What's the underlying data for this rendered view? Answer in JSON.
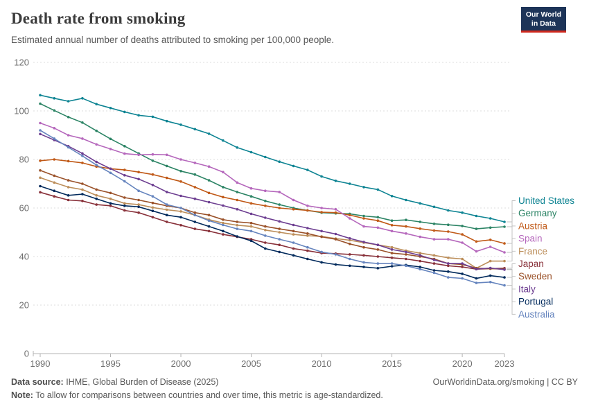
{
  "header": {
    "title": "Death rate from smoking",
    "subtitle": "Estimated annual number of deaths attributed to smoking per 100,000 people.",
    "logo": {
      "line1": "Our World",
      "line2": "in Data",
      "bg_color": "#1d3458",
      "accent_color": "#d0291e"
    }
  },
  "chart_data": {
    "type": "line",
    "title": "Death rate from smoking",
    "xlabel": "",
    "ylabel": "",
    "ylim": [
      0,
      120
    ],
    "y_ticks": [
      0,
      20,
      40,
      60,
      80,
      100,
      120
    ],
    "x_ticks": [
      1990,
      1995,
      2000,
      2005,
      2010,
      2015,
      2020,
      2023
    ],
    "grid": true,
    "legend_position": "right",
    "x": [
      1990,
      1991,
      1992,
      1993,
      1994,
      1995,
      1996,
      1997,
      1998,
      1999,
      2000,
      2001,
      2002,
      2003,
      2004,
      2005,
      2006,
      2007,
      2008,
      2009,
      2010,
      2011,
      2012,
      2013,
      2014,
      2015,
      2016,
      2017,
      2018,
      2019,
      2020,
      2021,
      2022,
      2023
    ],
    "series": [
      {
        "name": "United States",
        "color": "#0e8493",
        "values": [
          106.5,
          105.2,
          104.0,
          105.2,
          102.8,
          101.2,
          99.6,
          98.2,
          97.6,
          95.8,
          94.3,
          92.5,
          90.6,
          87.8,
          84.9,
          83.0,
          81.0,
          79.1,
          77.3,
          75.7,
          73.0,
          71.2,
          70.0,
          68.6,
          67.6,
          64.9,
          63.3,
          61.9,
          60.5,
          59.0,
          58.1,
          56.7,
          55.7,
          54.3
        ]
      },
      {
        "name": "Germany",
        "color": "#2c8465",
        "values": [
          103.0,
          100.2,
          97.5,
          95.2,
          91.8,
          88.5,
          85.5,
          82.5,
          79.5,
          77.3,
          75.2,
          73.8,
          71.4,
          68.6,
          66.6,
          64.8,
          62.9,
          61.4,
          60.0,
          59.0,
          58.1,
          57.8,
          57.6,
          56.7,
          56.2,
          54.8,
          55.1,
          54.3,
          53.5,
          53.1,
          52.6,
          51.4,
          51.9,
          52.3
        ]
      },
      {
        "name": "Austria",
        "color": "#c05917",
        "values": [
          79.5,
          80.0,
          79.3,
          78.6,
          77.1,
          76.2,
          75.7,
          74.8,
          73.8,
          72.4,
          70.9,
          68.6,
          66.2,
          64.5,
          63.3,
          61.9,
          60.9,
          60.0,
          59.5,
          59.0,
          58.3,
          58.1,
          57.1,
          55.7,
          54.8,
          52.9,
          52.4,
          51.5,
          50.7,
          50.3,
          49.1,
          46.2,
          46.9,
          45.4
        ]
      },
      {
        "name": "Spain",
        "color": "#b567bc",
        "values": [
          95.0,
          92.9,
          90.0,
          88.6,
          86.2,
          84.3,
          82.4,
          81.9,
          82.1,
          81.9,
          80.0,
          78.6,
          77.1,
          74.8,
          70.5,
          68.1,
          67.1,
          66.6,
          63.3,
          60.9,
          60.0,
          59.5,
          55.7,
          52.4,
          51.9,
          50.5,
          49.5,
          48.1,
          47.1,
          47.1,
          45.7,
          42.1,
          44.0,
          41.7
        ]
      },
      {
        "name": "France",
        "color": "#bc8e5a",
        "values": [
          72.5,
          70.5,
          68.6,
          67.6,
          65.2,
          63.8,
          61.9,
          61.4,
          60.2,
          59.3,
          58.6,
          57.1,
          55.2,
          53.8,
          52.9,
          52.4,
          50.9,
          50.0,
          49.1,
          48.6,
          48.3,
          47.4,
          46.7,
          45.7,
          44.8,
          43.8,
          42.4,
          41.4,
          40.5,
          39.5,
          39.0,
          35.2,
          38.1,
          38.1
        ]
      },
      {
        "name": "Japan",
        "color": "#883039",
        "values": [
          66.5,
          64.8,
          63.3,
          62.9,
          61.4,
          60.9,
          59.0,
          58.1,
          56.2,
          54.3,
          52.9,
          51.4,
          50.5,
          49.1,
          48.1,
          47.1,
          45.7,
          44.8,
          43.3,
          42.4,
          41.4,
          41.2,
          40.9,
          40.5,
          40.0,
          39.5,
          39.0,
          38.1,
          37.1,
          36.2,
          35.7,
          34.8,
          35.0,
          35.2
        ]
      },
      {
        "name": "Sweden",
        "color": "#9a5129",
        "values": [
          75.5,
          73.3,
          71.4,
          70.0,
          67.6,
          66.2,
          64.3,
          63.3,
          62.1,
          60.9,
          60.0,
          58.1,
          57.1,
          55.2,
          54.3,
          53.8,
          52.4,
          51.4,
          50.5,
          49.5,
          48.1,
          47.1,
          45.2,
          43.8,
          42.9,
          41.4,
          40.9,
          40.0,
          39.0,
          37.1,
          36.7,
          35.2,
          35.0,
          34.8
        ]
      },
      {
        "name": "Italy",
        "color": "#6d3e91",
        "values": [
          90.5,
          88.0,
          85.5,
          82.5,
          79.0,
          76.2,
          73.5,
          71.9,
          69.5,
          66.6,
          65.0,
          63.8,
          62.4,
          61.0,
          59.5,
          57.6,
          56.0,
          54.5,
          53.0,
          51.7,
          50.5,
          49.3,
          47.5,
          46.0,
          44.8,
          42.9,
          41.9,
          40.5,
          38.6,
          37.1,
          37.1,
          34.8,
          35.3,
          34.6
        ]
      },
      {
        "name": "Portugal",
        "color": "#00295b",
        "values": [
          69.0,
          67.1,
          65.2,
          65.7,
          63.8,
          61.9,
          60.9,
          60.5,
          58.8,
          57.1,
          56.2,
          54.3,
          52.4,
          50.5,
          48.3,
          46.5,
          43.3,
          41.9,
          40.5,
          39.0,
          37.6,
          36.7,
          36.2,
          35.7,
          35.2,
          36.0,
          36.5,
          35.7,
          34.3,
          33.8,
          32.9,
          31.0,
          32.1,
          31.4
        ]
      },
      {
        "name": "Australia",
        "color": "#6584be",
        "values": [
          92.0,
          88.6,
          85.0,
          81.5,
          77.7,
          74.5,
          71.0,
          67.1,
          64.8,
          61.4,
          60.0,
          57.1,
          54.8,
          53.0,
          51.4,
          50.5,
          48.6,
          47.1,
          45.7,
          43.8,
          41.9,
          40.9,
          39.0,
          37.6,
          37.1,
          37.1,
          36.2,
          34.8,
          33.3,
          31.4,
          31.0,
          29.1,
          29.5,
          28.1
        ]
      }
    ]
  },
  "footer": {
    "datasource_label": "Data source:",
    "datasource_text": " IHME, Global Burden of Disease (2025)",
    "link": "OurWorldinData.org/smoking | CC BY",
    "note_label": "Note:",
    "note_text": " To allow for comparisons between countries and over time, this metric is age-standardized."
  }
}
